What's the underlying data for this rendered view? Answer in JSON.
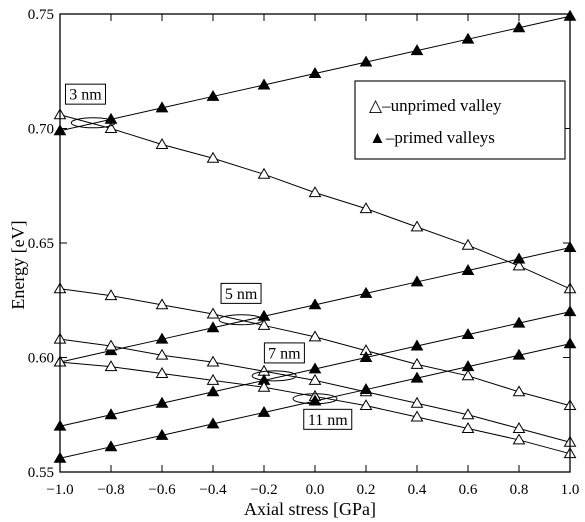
{
  "chart_data": {
    "type": "line",
    "title": "",
    "xlabel": "Axial stress [GPa]",
    "ylabel": "Energy [eV]",
    "xlim": [
      -1.0,
      1.0
    ],
    "ylim": [
      0.55,
      0.75
    ],
    "xticks": [
      -1.0,
      -0.8,
      -0.6,
      -0.4,
      -0.2,
      0.0,
      0.2,
      0.4,
      0.6,
      0.8,
      1.0
    ],
    "xtick_labels": [
      "−1.0",
      "−0.8",
      "−0.6",
      "−0.4",
      "−0.2",
      "0.0",
      "0.2",
      "0.4",
      "0.6",
      "0.8",
      "1.0"
    ],
    "yticks": [
      0.55,
      0.6,
      0.65,
      0.7,
      0.75
    ],
    "ytick_labels": [
      "0.55",
      "0.60",
      "0.65",
      "0.70",
      "0.75"
    ],
    "grid": false,
    "legend": {
      "placement": "top-right",
      "entries": [
        {
          "marker": "open-triangle",
          "label": "△–unprimed valley"
        },
        {
          "marker": "filled-triangle",
          "label": "▲–primed valleys"
        }
      ]
    },
    "x": [
      -1.0,
      -0.8,
      -0.6,
      -0.4,
      -0.2,
      0.0,
      0.2,
      0.4,
      0.6,
      0.8,
      1.0
    ],
    "series": [
      {
        "marker": "open",
        "group": "3 nm",
        "values": [
          0.706,
          0.7,
          0.693,
          0.687,
          0.68,
          0.672,
          0.665,
          0.657,
          0.649,
          0.64,
          0.63
        ]
      },
      {
        "marker": "filled",
        "group": "3 nm",
        "values": [
          0.699,
          0.704,
          0.709,
          0.714,
          0.719,
          0.724,
          0.729,
          0.734,
          0.739,
          0.744,
          0.749
        ]
      },
      {
        "marker": "open",
        "group": "5 nm",
        "values": [
          0.63,
          0.627,
          0.623,
          0.619,
          0.614,
          0.609,
          0.603,
          0.597,
          0.592,
          0.585,
          0.579
        ]
      },
      {
        "marker": "filled",
        "group": "5 nm",
        "values": [
          0.598,
          0.603,
          0.608,
          0.613,
          0.618,
          0.623,
          0.628,
          0.633,
          0.638,
          0.643,
          0.648
        ]
      },
      {
        "marker": "open",
        "group": "7 nm",
        "values": [
          0.608,
          0.605,
          0.601,
          0.598,
          0.594,
          0.59,
          0.585,
          0.58,
          0.575,
          0.569,
          0.563
        ]
      },
      {
        "marker": "filled",
        "group": "7 nm",
        "values": [
          0.57,
          0.575,
          0.58,
          0.585,
          0.59,
          0.595,
          0.6,
          0.605,
          0.61,
          0.615,
          0.62
        ]
      },
      {
        "marker": "open",
        "group": "11 nm",
        "values": [
          0.598,
          0.596,
          0.593,
          0.59,
          0.587,
          0.583,
          0.579,
          0.574,
          0.569,
          0.564,
          0.558
        ]
      },
      {
        "marker": "filled",
        "group": "11 nm",
        "values": [
          0.556,
          0.561,
          0.566,
          0.571,
          0.576,
          0.581,
          0.586,
          0.591,
          0.596,
          0.601,
          0.606
        ]
      }
    ],
    "annotations": [
      {
        "label": "3 nm",
        "x": -0.87,
        "y": 0.7025
      },
      {
        "label": "5 nm",
        "x": -0.29,
        "y": 0.6165
      },
      {
        "label": "7 nm",
        "x": -0.16,
        "y": 0.592
      },
      {
        "label": "11 nm",
        "x": 0.0,
        "y": 0.582
      }
    ]
  }
}
